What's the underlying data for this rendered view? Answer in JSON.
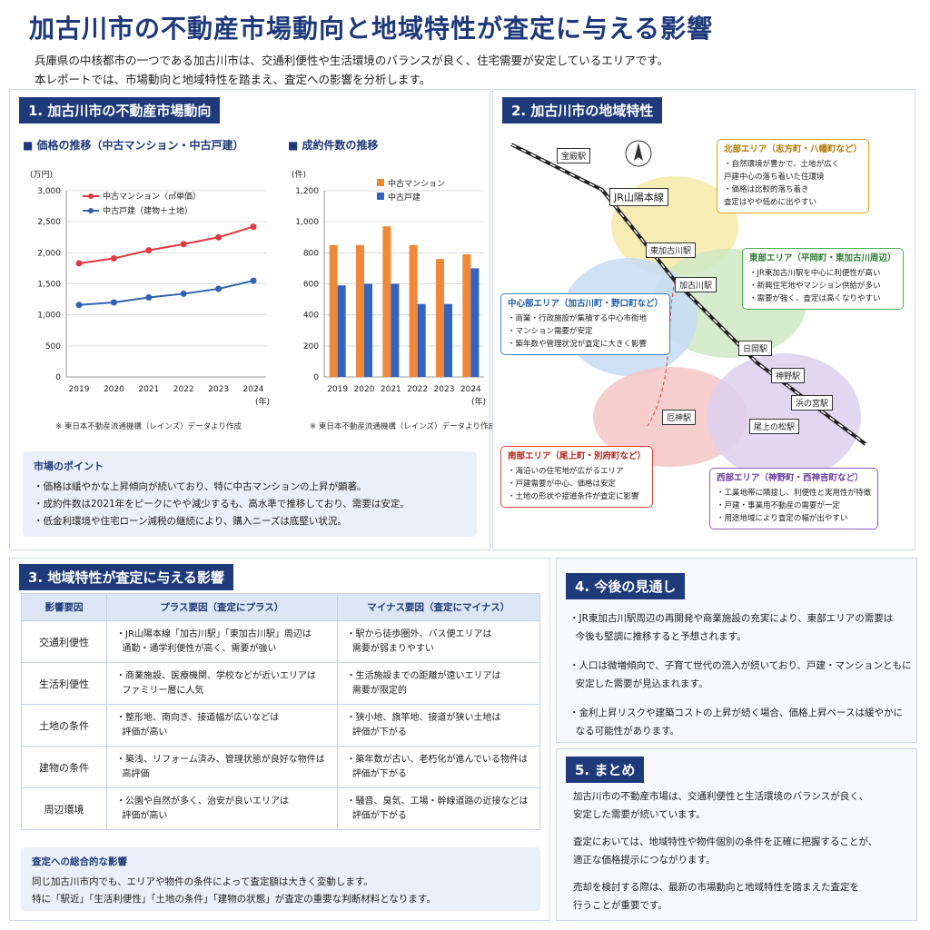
{
  "title": "加古川市の不動産市場動向と地域特性が査定に与える影響",
  "intro": {
    "line1": "兵庫県の中核都市の一つである加古川市は、交通利便性や生活環境のバランスが良く、住宅需要が安定しているエリアです。",
    "line2": "本レポートでは、市場動向と地域特性を踏まえ、査定への影響を分析します。"
  },
  "section1": {
    "heading": "1. 加古川市の不動産市場動向",
    "price_title": "■ 価格の推移（中古マンション・中古戸建）",
    "count_title": "■ 成約件数の推移",
    "price_unit": "(万円)",
    "count_unit": "(件)",
    "year_suffix": "(年)",
    "source_note": "※ 東日本不動産流通機構（レインズ）データより作成",
    "points_heading": "市場のポイント",
    "points": [
      "・価格は緩やかな上昇傾向が続いており、特に中古マンションの上昇が顕著。",
      "・成約件数は2021年をピークにやや減少するも、高水準で推移しており、需要は安定。",
      "・低金利環境や住宅ローン減税の継続により、購入ニーズは底堅い状況。"
    ]
  },
  "chart_data": [
    {
      "type": "line",
      "title": "価格の推移（中古マンション・中古戸建）",
      "ylabel": "(万円)",
      "xlabel": "(年)",
      "x": [
        "2019",
        "2020",
        "2021",
        "2022",
        "2023",
        "2024"
      ],
      "ylim": [
        0,
        3000
      ],
      "yticks": [
        "0",
        "500",
        "1,000",
        "1,500",
        "2,000",
        "2,500",
        "3,000"
      ],
      "grid": true,
      "legend": "top-left",
      "series": [
        {
          "name": "中古マンション（㎡単価）",
          "color": "#e0393e",
          "values": [
            1830,
            1910,
            2040,
            2140,
            2250,
            2420
          ]
        },
        {
          "name": "中古戸建（建物＋土地）",
          "color": "#2f63b0",
          "values": [
            1160,
            1200,
            1280,
            1340,
            1420,
            1550
          ]
        }
      ]
    },
    {
      "type": "bar",
      "title": "成約件数の推移",
      "ylabel": "(件)",
      "xlabel": "(年)",
      "categories": [
        "2019",
        "2020",
        "2021",
        "2022",
        "2023",
        "2024"
      ],
      "ylim": [
        0,
        1200
      ],
      "yticks": [
        "0",
        "200",
        "400",
        "600",
        "800",
        "1,000",
        "1,200"
      ],
      "grid": true,
      "legend": "top",
      "series": [
        {
          "name": "中古マンション",
          "color": "#f0883a",
          "values": [
            850,
            850,
            970,
            850,
            760,
            790
          ]
        },
        {
          "name": "中古戸建",
          "color": "#3563c0",
          "values": [
            590,
            600,
            600,
            470,
            470,
            700
          ]
        }
      ]
    }
  ],
  "section2": {
    "heading": "2. 加古川市の地域特性",
    "rail_label": "JR山陽本線",
    "stations": [
      "宝殿駅",
      "東加古川駅",
      "加古川駅",
      "日岡駅",
      "神野駅",
      "厄神駅",
      "尾上の松駅",
      "浜の宮駅"
    ],
    "areas": [
      {
        "name": "北部エリア（志方町・八幡町など）",
        "color": "#e5a21c",
        "items": [
          "・自然環境が豊かで、土地が広く",
          "  戸建中心の落ち着いた住環境",
          "・価格は比較的落ち着き",
          "  査定はやや低めに出やすい"
        ]
      },
      {
        "name": "東部エリア（平岡町・東加古川周辺）",
        "color": "#4caf50",
        "items": [
          "・JR東加古川駅を中心に利便性が高い",
          "・新興住宅地やマンション供給が多い",
          "・需要が強く、査定は高くなりやすい"
        ]
      },
      {
        "name": "中心部エリア（加古川町・野口町など）",
        "color": "#3a82d0",
        "items": [
          "・商業・行政施設が集積する中心市街地",
          "・マンション需要が安定",
          "・築年数や管理状況が査定に大きく影響"
        ]
      },
      {
        "name": "南部エリア（尾上町・別府町など）",
        "color": "#d9423a",
        "items": [
          "・海沿いの住宅地が広がるエリア",
          "・戸建需要が中心、価格は安定",
          "・土地の形状や接道条件が査定に影響"
        ]
      },
      {
        "name": "西部エリア（神野町・西神吉町など）",
        "color": "#8e5fc0",
        "items": [
          "・工業地帯に隣接し、利便性と実用性が特徴",
          "・戸建・事業用不動産の需要が一定",
          "・用途地域により査定の幅が出やすい"
        ]
      }
    ]
  },
  "section3": {
    "heading": "3. 地域特性が査定に与える影響",
    "col_factor": "影響要因",
    "col_plus": "プラス要因（査定にプラス）",
    "col_minus": "マイナス要因（査定にマイナス）",
    "rows": [
      {
        "factor": "交通利便性",
        "plus": "・JR山陽本線「加古川駅」「東加古川駅」周辺は\n  通勤・通学利便性が高く、需要が強い",
        "minus": "・駅から徒歩圏外、バス便エリアは\n  需要が弱まりやすい"
      },
      {
        "factor": "生活利便性",
        "plus": "・商業施設、医療機関、学校などが近いエリアは\n  ファミリー層に人気",
        "minus": "・生活施設までの距離が遠いエリアは\n  需要が限定的"
      },
      {
        "factor": "土地の条件",
        "plus": "・整形地、南向き、接道幅が広いなどは\n  評価が高い",
        "minus": "・狭小地、旗竿地、接道が狭い土地は\n  評価が下がる"
      },
      {
        "factor": "建物の条件",
        "plus": "・築浅、リフォーム済み、管理状態が良好な物件は\n  高評価",
        "minus": "・築年数が古い、老朽化が進んでいる物件は\n  評価が下がる"
      },
      {
        "factor": "周辺環境",
        "plus": "・公園や自然が多く、治安が良いエリアは\n  評価が高い",
        "minus": "・騒音、臭気、工場・幹線道路の近接などは\n  評価が下がる"
      }
    ],
    "overall_heading": "査定への総合的な影響",
    "overall_line1": "同じ加古川市内でも、エリアや物件の条件によって査定額は大きく変動します。",
    "overall_line2": "特に「駅近」「生活利便性」「土地の条件」「建物の状態」が査定の重要な判断材料となります。"
  },
  "section4": {
    "heading": "4. 今後の見通し",
    "items": [
      "・JR東加古川駅周辺の再開発や商業施設の充実により、東部エリアの需要は\n  今後も堅調に推移すると予想されます。",
      "・人口は微増傾向で、子育て世代の流入が続いており、戸建・マンションともに\n  安定した需要が見込まれます。",
      "・金利上昇リスクや建築コストの上昇が続く場合、価格上昇ペースは緩やかに\n  なる可能性があります。"
    ]
  },
  "section5": {
    "heading": "5. まとめ",
    "paragraphs": [
      "加古川市の不動産市場は、交通利便性と生活環境のバランスが良く、\n安定した需要が続いています。",
      "査定においては、地域特性や物件個別の条件を正確に把握することが、\n適正な価格提示につながります。",
      "売却を検討する際は、最新の市場動向と地域特性を踏まえた査定を\n行うことが重要です。"
    ]
  }
}
